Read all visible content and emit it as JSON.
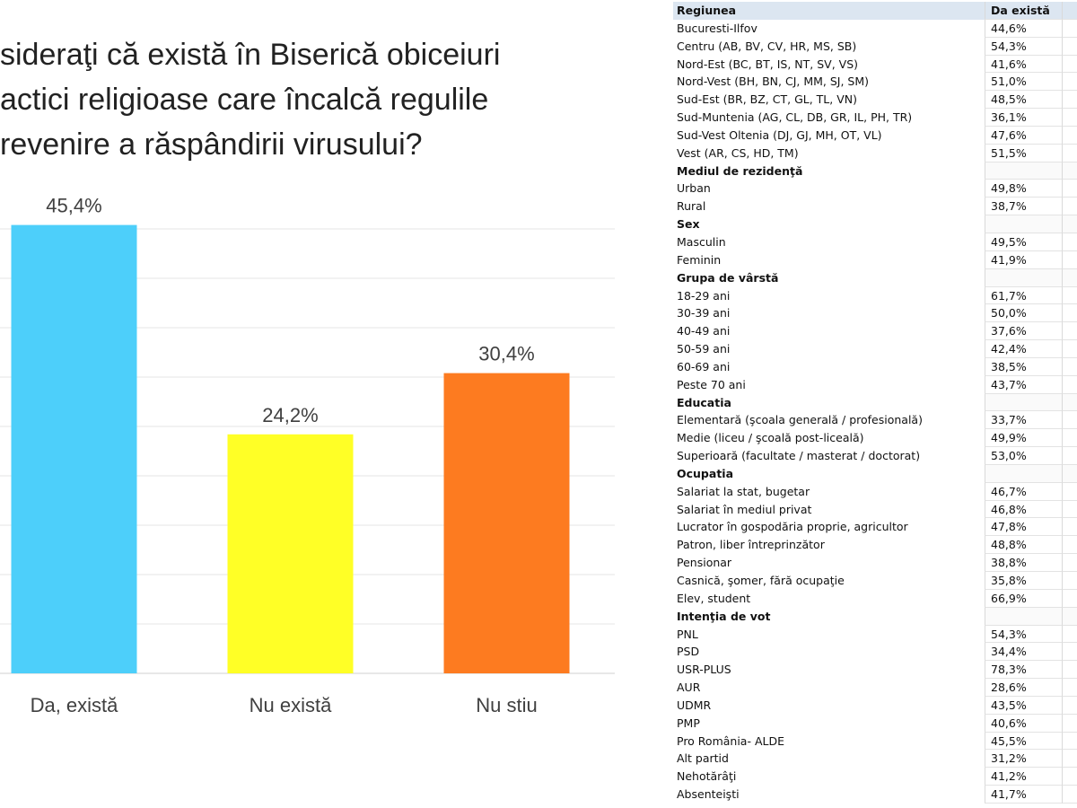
{
  "chart_data": {
    "type": "bar",
    "title": [
      "sideraţi că există în Biserică obiceiuri",
      "actici religioase care încalcă regulile",
      "revenire a răspândirii virusului?"
    ],
    "categories": [
      "Da, există",
      "Nu există",
      "Nu stiu"
    ],
    "values": [
      45.4,
      24.2,
      30.4
    ],
    "value_labels": [
      "45,4%",
      "24,2%",
      "30,4%"
    ],
    "colors": [
      "#4dcffa",
      "#ffff26",
      "#fd7b20"
    ],
    "ylim": [
      0,
      50
    ],
    "yticks": [
      0,
      5,
      10,
      15,
      20,
      25,
      30,
      35,
      40,
      45
    ],
    "grid": true
  },
  "table": {
    "header": [
      "Regiunea",
      "Da există"
    ],
    "rows": [
      [
        "Bucuresti-Ilfov",
        "44,6%"
      ],
      [
        "Centru (AB, BV, CV, HR, MS, SB)",
        "54,3%"
      ],
      [
        "Nord-Est (BC, BT, IS, NT, SV, VS)",
        "41,6%"
      ],
      [
        "Nord-Vest (BH, BN, CJ, MM, SJ, SM)",
        "51,0%"
      ],
      [
        "Sud-Est (BR, BZ, CT, GL, TL, VN)",
        "48,5%"
      ],
      [
        "Sud-Muntenia (AG, CL, DB, GR, IL, PH, TR)",
        "36,1%"
      ],
      [
        "Sud-Vest Oltenia (DJ, GJ, MH, OT, VL)",
        "47,6%"
      ],
      [
        "Vest (AR, CS, HD, TM)",
        "51,5%"
      ],
      [
        "Mediul de rezidenţă"
      ],
      [
        "Urban",
        "49,8%"
      ],
      [
        "Rural",
        "38,7%"
      ],
      [
        "Sex"
      ],
      [
        "Masculin",
        "49,5%"
      ],
      [
        "Feminin",
        "41,9%"
      ],
      [
        "Grupa de vârstă"
      ],
      [
        "18-29 ani",
        "61,7%"
      ],
      [
        "30-39 ani",
        "50,0%"
      ],
      [
        "40-49 ani",
        "37,6%"
      ],
      [
        "50-59 ani",
        "42,4%"
      ],
      [
        "60-69 ani",
        "38,5%"
      ],
      [
        "Peste 70 ani",
        "43,7%"
      ],
      [
        "Educatia"
      ],
      [
        "Elementară (şcoala generală / profesională)",
        "33,7%"
      ],
      [
        "Medie (liceu / şcoală post-liceală)",
        "49,9%"
      ],
      [
        "Superioară (facultate / masterat / doctorat)",
        "53,0%"
      ],
      [
        "Ocupatia"
      ],
      [
        "Salariat la stat, bugetar",
        "46,7%"
      ],
      [
        "Salariat în mediul privat",
        "46,8%"
      ],
      [
        "Lucrator în gospodăria proprie, agricultor",
        "47,8%"
      ],
      [
        "Patron, liber întreprinzător",
        "48,8%"
      ],
      [
        "Pensionar",
        "38,8%"
      ],
      [
        "Casnică, şomer, fără ocupaţie",
        "35,8%"
      ],
      [
        "Elev, student",
        "66,9%"
      ],
      [
        "Intenţia de vot"
      ],
      [
        "PNL",
        "54,3%"
      ],
      [
        "PSD",
        "34,4%"
      ],
      [
        "USR-PLUS",
        "78,3%"
      ],
      [
        "AUR",
        "28,6%"
      ],
      [
        "UDMR",
        "43,5%"
      ],
      [
        "PMP",
        "40,6%"
      ],
      [
        "Pro România- ALDE",
        "45,5%"
      ],
      [
        "Alt partid",
        "31,2%"
      ],
      [
        "Nehotărâţi",
        "41,2%"
      ],
      [
        "Absenteişti",
        "41,7%"
      ]
    ]
  }
}
